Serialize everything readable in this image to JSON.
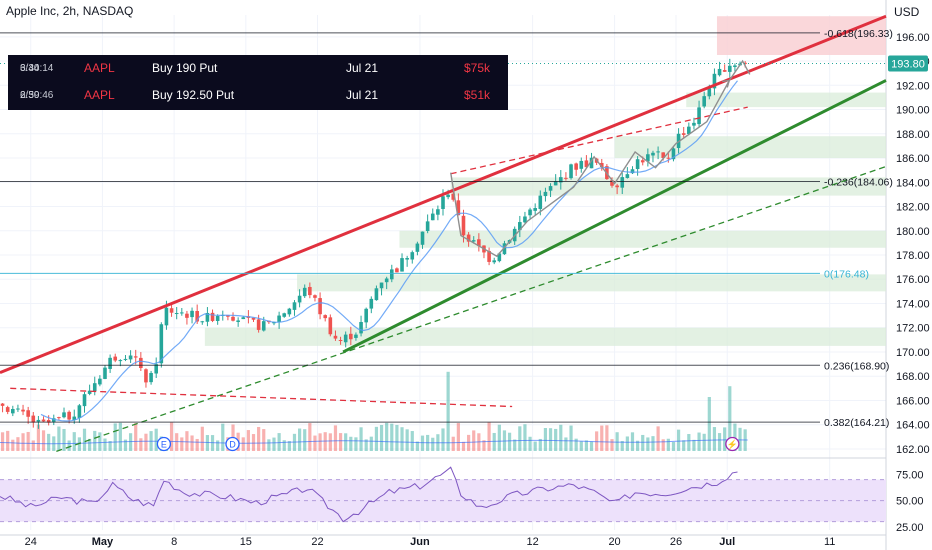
{
  "header": {
    "title": "Apple Inc, 2h, NASDAQ",
    "currency": "USD"
  },
  "colors": {
    "up": "#26a69a",
    "down": "#ef5350",
    "resistance_line": "#e0303e",
    "support_line": "#2e8b2e",
    "fib_zero": "#36b4d6",
    "rsi_line": "#7e57c2",
    "rsi_band": "#ede1fb",
    "zone": "#d9ecd9",
    "sell_zone": "#f9d0d3",
    "price_tag": "#26a69a",
    "table_bg": "#0b0b1e"
  },
  "flow_table": {
    "rows": [
      {
        "date": "6/30",
        "time": "3:44:14",
        "symbol": "AAPL",
        "action": "Buy 190 Put",
        "expiry": "Jul 21",
        "premium": "$75k"
      },
      {
        "date": "6/30",
        "time": "2:59:46",
        "symbol": "AAPL",
        "action": "Buy 192.50 Put",
        "expiry": "Jul 21",
        "premium": "$51k"
      }
    ]
  },
  "chart_data": {
    "type": "candlestick",
    "title": "Apple Inc, 2h, NASDAQ",
    "price_axis": {
      "ticks": [
        "196.00",
        "194.00",
        "192.00",
        "190.00",
        "188.00",
        "186.00",
        "184.00",
        "182.00",
        "180.00",
        "178.00",
        "176.00",
        "174.00",
        "172.00",
        "170.00",
        "168.00",
        "166.00",
        "164.00",
        "162.00"
      ],
      "range": [
        161.5,
        197.8
      ],
      "current_price": "193.80"
    },
    "time_axis": {
      "ticks": [
        "24",
        "May",
        "8",
        "15",
        "22",
        "Jun",
        "12",
        "20",
        "26",
        "Jul",
        "11"
      ],
      "tick_days": [
        -7,
        0,
        7,
        14,
        21,
        31,
        42,
        50,
        56,
        61,
        71
      ],
      "range_days": [
        -10,
        76.5
      ]
    },
    "price_series": [
      {
        "day": -10,
        "price": 165.8
      },
      {
        "day": -6,
        "price": 163.9
      },
      {
        "day": -3,
        "price": 164.8
      },
      {
        "day": -1,
        "price": 167.2
      },
      {
        "day": 1,
        "price": 169.6
      },
      {
        "day": 3,
        "price": 170.0
      },
      {
        "day": 4,
        "price": 167.7
      },
      {
        "day": 5,
        "price": 167.9
      },
      {
        "day": 6,
        "price": 173.5
      },
      {
        "day": 8,
        "price": 173.2
      },
      {
        "day": 10,
        "price": 172.7
      },
      {
        "day": 12,
        "price": 173.4
      },
      {
        "day": 14,
        "price": 172.4
      },
      {
        "day": 16,
        "price": 172.1
      },
      {
        "day": 18,
        "price": 173.5
      },
      {
        "day": 20,
        "price": 175.3
      },
      {
        "day": 22,
        "price": 172.2
      },
      {
        "day": 23,
        "price": 170.8
      },
      {
        "day": 25,
        "price": 171.8
      },
      {
        "day": 27,
        "price": 175.8
      },
      {
        "day": 29,
        "price": 177.1
      },
      {
        "day": 31,
        "price": 179.6
      },
      {
        "day": 34,
        "price": 183.6
      },
      {
        "day": 35,
        "price": 180.0
      },
      {
        "day": 37,
        "price": 178.3
      },
      {
        "day": 38,
        "price": 177.6
      },
      {
        "day": 40,
        "price": 179.8
      },
      {
        "day": 42,
        "price": 182.0
      },
      {
        "day": 44,
        "price": 183.7
      },
      {
        "day": 46,
        "price": 185.3
      },
      {
        "day": 48,
        "price": 185.8
      },
      {
        "day": 49,
        "price": 184.6
      },
      {
        "day": 50,
        "price": 183.8
      },
      {
        "day": 52,
        "price": 185.7
      },
      {
        "day": 54,
        "price": 186.3
      },
      {
        "day": 55,
        "price": 185.6
      },
      {
        "day": 56,
        "price": 187.6
      },
      {
        "day": 58,
        "price": 189.3
      },
      {
        "day": 59,
        "price": 191.8
      },
      {
        "day": 61,
        "price": 193.8
      }
    ],
    "candle_seed": 7,
    "moving_average": {
      "lag": 4
    },
    "volume_series": [
      {
        "day": 34,
        "volume": 2.2
      },
      {
        "day": 59.5,
        "volume": 1.5
      },
      {
        "day": 61.5,
        "volume": 1.8
      }
    ],
    "volume_ma_level": [
      0.23,
      0.28
    ],
    "trend_lines": [
      {
        "name": "rising resistance",
        "style": "solid",
        "color": "#e0303e",
        "from": [
          -10,
          168.3
        ],
        "to": [
          76.5,
          197.7
        ]
      },
      {
        "name": "rising support",
        "style": "solid",
        "color": "#2e8b2e",
        "from": [
          23.5,
          170.0
        ],
        "to": [
          76.5,
          192.4
        ]
      },
      {
        "name": "parallel support",
        "style": "dashed",
        "color": "#2e8b2e",
        "from": [
          -4.5,
          161.8
        ],
        "to": [
          76.5,
          185.3
        ]
      },
      {
        "name": "upper channel",
        "style": "dashed",
        "color": "#e0303e",
        "from": [
          34,
          184.7
        ],
        "to": [
          63,
          190.2
        ]
      },
      {
        "name": "prior channel",
        "style": "dashed",
        "color": "#e0303e",
        "from": [
          -9,
          167.0
        ],
        "to": [
          40,
          165.5
        ]
      }
    ],
    "zones": [
      {
        "type": "supply",
        "from_day": 60,
        "to_day": 76.5,
        "low": 194.5,
        "high": 197.7
      },
      {
        "type": "demand",
        "from_day": 57,
        "to_day": 76.5,
        "low": 190.2,
        "high": 191.4
      },
      {
        "type": "demand",
        "from_day": 50,
        "to_day": 76.5,
        "low": 186.0,
        "high": 187.8
      },
      {
        "type": "demand",
        "from_day": 34,
        "to_day": 76.5,
        "low": 182.9,
        "high": 184.4
      },
      {
        "type": "demand",
        "from_day": 29,
        "to_day": 76.5,
        "low": 178.6,
        "high": 180.0
      },
      {
        "type": "demand",
        "from_day": 19,
        "to_day": 76.5,
        "low": 175.0,
        "high": 176.4
      },
      {
        "type": "demand",
        "from_day": 10,
        "to_day": 76.5,
        "low": 170.5,
        "high": 172.0
      }
    ],
    "fib_levels": [
      {
        "label": "-0.618(196.33)",
        "price": 196.33,
        "color": "#131722"
      },
      {
        "label": "-0.236(184.06)",
        "price": 184.06,
        "color": "#131722"
      },
      {
        "label": "0(176.48)",
        "price": 176.48,
        "color": "#36b4d6"
      },
      {
        "label": "0.236(168.90)",
        "price": 168.9,
        "color": "#131722"
      },
      {
        "label": "0.382(164.21)",
        "price": 164.21,
        "color": "#131722"
      }
    ],
    "path_projection": [
      [
        34,
        184.8
      ],
      [
        35,
        179.6
      ],
      [
        38.5,
        177.9
      ],
      [
        41.5,
        180.8
      ],
      [
        46,
        183.6
      ],
      [
        48,
        186.1
      ],
      [
        50,
        183.9
      ],
      [
        52,
        186.5
      ],
      [
        54,
        185.2
      ],
      [
        56,
        187.2
      ],
      [
        59,
        189.0
      ],
      [
        61.2,
        192.4
      ],
      [
        62.5,
        194.0
      ],
      [
        63.2,
        192.9
      ]
    ],
    "event_markers": [
      {
        "label": "E",
        "day": 6
      },
      {
        "label": "D",
        "day": 12.7
      },
      {
        "label": "⚡",
        "day": 61.5
      }
    ],
    "rsi": {
      "ticks": [
        "75.00",
        "50.00",
        "25.00"
      ],
      "range": [
        22,
        83
      ],
      "band": [
        30,
        70
      ],
      "series": [
        {
          "day": -10,
          "value": 55
        },
        {
          "day": -7,
          "value": 44
        },
        {
          "day": -4,
          "value": 53
        },
        {
          "day": -1,
          "value": 47
        },
        {
          "day": 1,
          "value": 65
        },
        {
          "day": 3,
          "value": 51
        },
        {
          "day": 5,
          "value": 45
        },
        {
          "day": 6,
          "value": 70
        },
        {
          "day": 8,
          "value": 58
        },
        {
          "day": 12,
          "value": 54
        },
        {
          "day": 15,
          "value": 48
        },
        {
          "day": 18,
          "value": 56
        },
        {
          "day": 20,
          "value": 62
        },
        {
          "day": 22,
          "value": 45
        },
        {
          "day": 23.5,
          "value": 33
        },
        {
          "day": 25,
          "value": 40
        },
        {
          "day": 28,
          "value": 58
        },
        {
          "day": 31,
          "value": 64
        },
        {
          "day": 34,
          "value": 79
        },
        {
          "day": 35,
          "value": 57
        },
        {
          "day": 37,
          "value": 43
        },
        {
          "day": 40,
          "value": 55
        },
        {
          "day": 43,
          "value": 61
        },
        {
          "day": 46,
          "value": 65
        },
        {
          "day": 48,
          "value": 58
        },
        {
          "day": 50,
          "value": 47
        },
        {
          "day": 52,
          "value": 58
        },
        {
          "day": 55,
          "value": 57
        },
        {
          "day": 58,
          "value": 64
        },
        {
          "day": 60,
          "value": 68
        },
        {
          "day": 62,
          "value": 79
        }
      ]
    }
  }
}
